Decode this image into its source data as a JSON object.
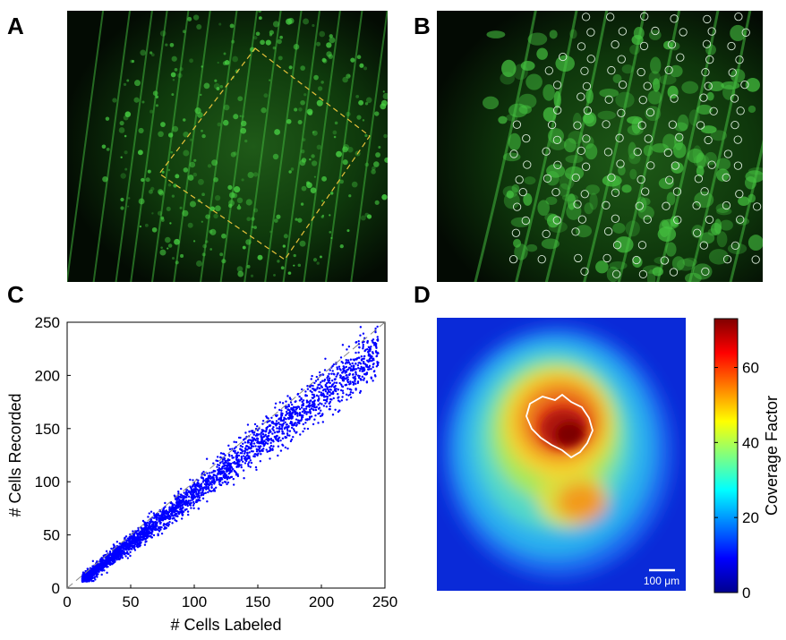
{
  "figure": {
    "panels": {
      "a": {
        "letter": "A"
      },
      "b": {
        "letter": "B"
      },
      "c": {
        "letter": "C"
      },
      "d": {
        "letter": "D"
      }
    },
    "heatmap": {
      "scale_bar_label": "100 μm",
      "colorbar_label": "Coverage Factor",
      "colorbar_ticks": [
        0,
        20,
        40,
        60
      ],
      "colorbar_range": [
        0,
        73
      ]
    }
  },
  "chart_data": [
    {
      "type": "scatter",
      "panel": "C",
      "title": "",
      "xlabel": "# Cells Labeled",
      "ylabel": "# Cells Recorded",
      "xlim": [
        0,
        250
      ],
      "ylim": [
        0,
        250
      ],
      "xticks": [
        0,
        50,
        100,
        150,
        200,
        250
      ],
      "yticks": [
        0,
        50,
        100,
        150,
        200,
        250
      ],
      "grid": false,
      "reference_line": {
        "style": "dashed",
        "from": [
          0,
          0
        ],
        "to": [
          250,
          250
        ]
      },
      "marker_color": "#0000ff",
      "approx_trend": {
        "slope": 0.93,
        "intercept": -4,
        "x_range": [
          12,
          245
        ],
        "point_count": 3000
      },
      "sample_points": [
        [
          15,
          10
        ],
        [
          20,
          15
        ],
        [
          25,
          20
        ],
        [
          30,
          25
        ],
        [
          40,
          33
        ],
        [
          50,
          42
        ],
        [
          60,
          52
        ],
        [
          75,
          66
        ],
        [
          90,
          80
        ],
        [
          100,
          90
        ],
        [
          110,
          99
        ],
        [
          125,
          112
        ],
        [
          140,
          128
        ],
        [
          150,
          138
        ],
        [
          160,
          147
        ],
        [
          175,
          160
        ],
        [
          190,
          172
        ],
        [
          200,
          182
        ],
        [
          215,
          198
        ],
        [
          230,
          212
        ],
        [
          243,
          228
        ]
      ]
    }
  ]
}
